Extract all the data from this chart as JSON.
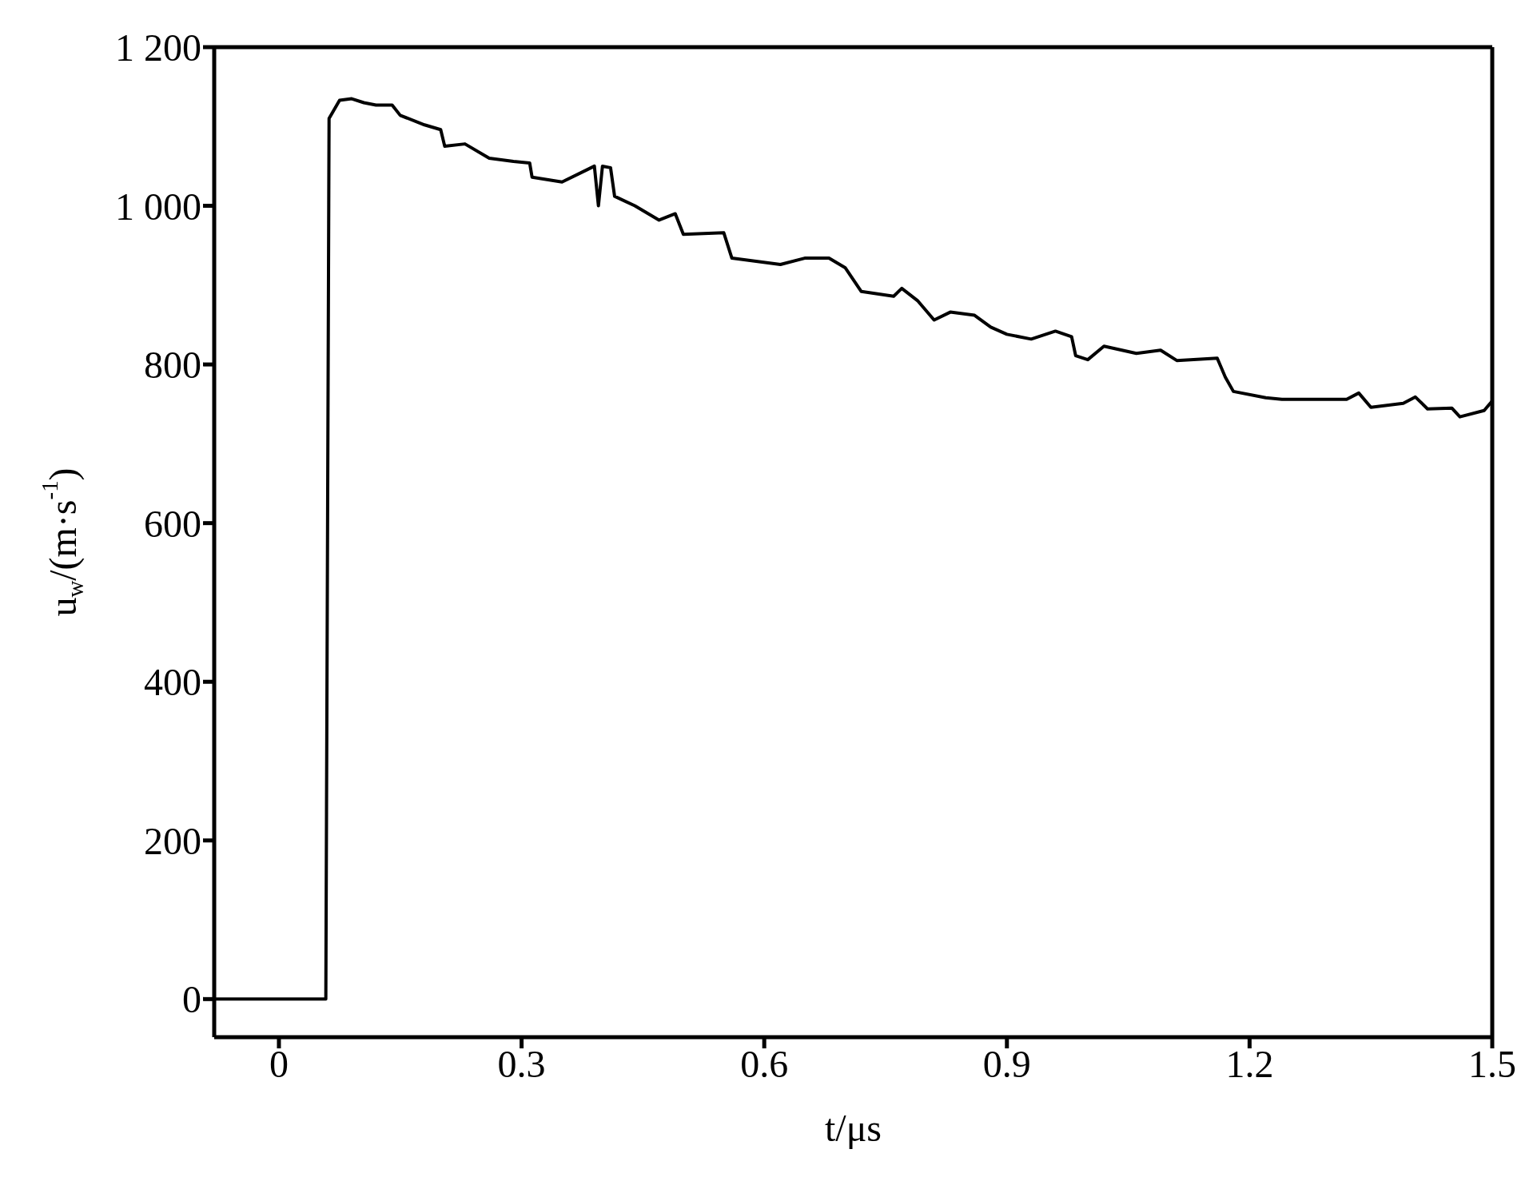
{
  "chart_data": {
    "type": "line",
    "xlabel": "t/μs",
    "ylabel": "u$_{w}$/(m·s$^{-1}$)",
    "xlim": [
      -0.08,
      1.5
    ],
    "xticks": [
      0,
      0.3,
      0.6,
      0.9,
      1.2,
      1.5
    ],
    "ylim": [
      -48,
      1200
    ],
    "yticks": [
      0,
      200,
      400,
      600,
      800,
      {
        "value": 1000,
        "label": "1 000"
      },
      {
        "value": 1200,
        "label": "1 200"
      }
    ],
    "marker": "none",
    "line_style": "solid",
    "x": [
      -0.08,
      0.058,
      0.062,
      0.075,
      0.09,
      0.105,
      0.12,
      0.14,
      0.15,
      0.18,
      0.2,
      0.205,
      0.23,
      0.26,
      0.29,
      0.31,
      0.313,
      0.35,
      0.38,
      0.39,
      0.395,
      0.4,
      0.41,
      0.415,
      0.44,
      0.47,
      0.49,
      0.5,
      0.55,
      0.56,
      0.62,
      0.65,
      0.68,
      0.7,
      0.72,
      0.76,
      0.77,
      0.79,
      0.81,
      0.83,
      0.86,
      0.88,
      0.9,
      0.93,
      0.96,
      0.98,
      0.985,
      1.0,
      1.02,
      1.06,
      1.09,
      1.11,
      1.16,
      1.17,
      1.18,
      1.22,
      1.24,
      1.32,
      1.335,
      1.35,
      1.39,
      1.405,
      1.42,
      1.45,
      1.46,
      1.49,
      1.5
    ],
    "series": [
      {
        "color": "#000000",
        "values": [
          0,
          0,
          1110,
          1133,
          1135,
          1130,
          1127,
          1127,
          1114,
          1102,
          1096,
          1075,
          1078,
          1060,
          1056,
          1054,
          1036,
          1030,
          1045,
          1050,
          1000,
          1050,
          1048,
          1012,
          1000,
          982,
          990,
          964,
          966,
          934,
          926,
          934,
          934,
          922,
          892,
          886,
          896,
          880,
          856,
          866,
          862,
          847,
          838,
          832,
          842,
          835,
          811,
          806,
          823,
          814,
          818,
          805,
          808,
          784,
          766,
          758,
          756,
          756,
          764,
          746,
          751,
          759,
          744,
          745,
          734,
          742,
          754
        ]
      }
    ]
  }
}
